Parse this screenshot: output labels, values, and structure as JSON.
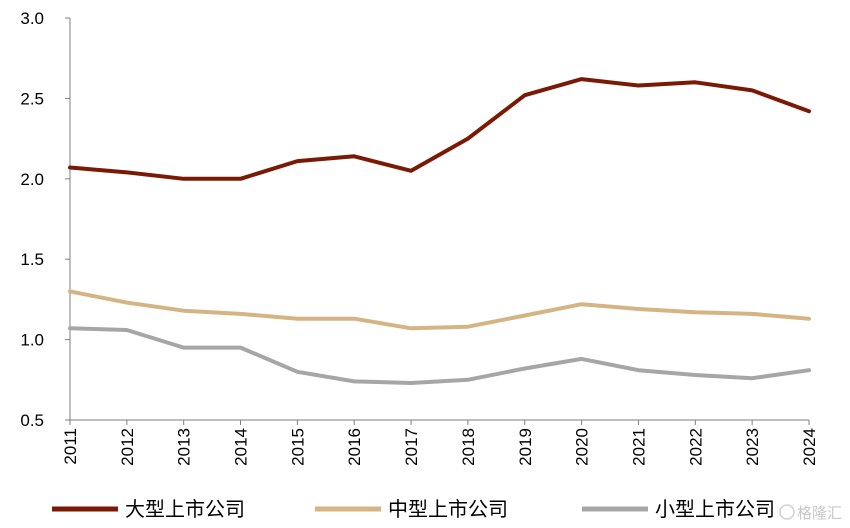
{
  "chart_data": {
    "type": "line",
    "title": "",
    "xlabel": "",
    "ylabel": "",
    "x": [
      "2011",
      "2012",
      "2013",
      "2014",
      "2015",
      "2016",
      "2017",
      "2018",
      "2019",
      "2020",
      "2021",
      "2022",
      "2023",
      "2024"
    ],
    "ylim": [
      0.5,
      3.0
    ],
    "yticks": [
      "0.5",
      "1.0",
      "1.5",
      "2.0",
      "2.5",
      "3.0"
    ],
    "grid": false,
    "legend_position": "bottom",
    "series": [
      {
        "name": "大型上市公司",
        "color": "#7a1a05",
        "values": [
          2.07,
          2.04,
          2.0,
          2.0,
          2.11,
          2.14,
          2.05,
          2.25,
          2.52,
          2.62,
          2.58,
          2.6,
          2.55,
          2.42
        ]
      },
      {
        "name": "中型上市公司",
        "color": "#d5b483",
        "values": [
          1.3,
          1.23,
          1.18,
          1.16,
          1.13,
          1.13,
          1.07,
          1.08,
          1.15,
          1.22,
          1.19,
          1.17,
          1.16,
          1.13
        ]
      },
      {
        "name": "小型上市公司",
        "color": "#a6a6a6",
        "values": [
          1.07,
          1.06,
          0.95,
          0.95,
          0.8,
          0.74,
          0.73,
          0.75,
          0.82,
          0.88,
          0.81,
          0.78,
          0.76,
          0.81
        ]
      }
    ]
  },
  "watermark": {
    "text": "格隆汇"
  }
}
